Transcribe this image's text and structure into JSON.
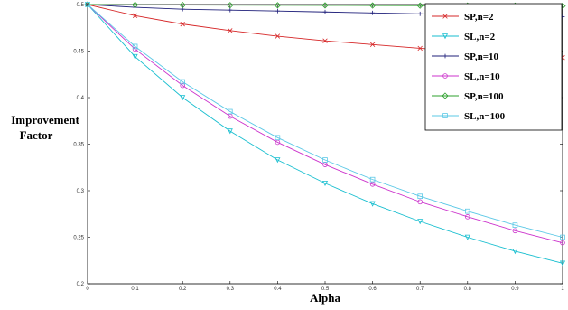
{
  "chart_data": {
    "type": "line",
    "xlabel": "Alpha",
    "ylabel_lines": [
      "Improvement",
      "Factor"
    ],
    "xlim": [
      0,
      1
    ],
    "ylim": [
      0.2,
      0.5
    ],
    "xticks": [
      "0",
      "0.1",
      "0.2",
      "0.3",
      "0.4",
      "0.5",
      "0.6",
      "0.7",
      "0.8",
      "0.9",
      "1"
    ],
    "yticks": [
      "0.2",
      "0.25",
      "0.3",
      "0.35",
      "0.4",
      "0.45",
      "0.5"
    ],
    "grid": false,
    "legend_position": "top-right",
    "x": [
      0,
      0.1,
      0.2,
      0.3,
      0.4,
      0.5,
      0.6,
      0.7,
      0.8,
      0.9,
      1.0
    ],
    "series": [
      {
        "name": "SP,n=2",
        "color": "#d62728",
        "marker": "x",
        "values": [
          0.5,
          0.488,
          0.479,
          0.472,
          0.466,
          0.461,
          0.457,
          0.453,
          0.449,
          0.446,
          0.443
        ]
      },
      {
        "name": "SL,n=2",
        "color": "#17becf",
        "marker": "triangle-down",
        "values": [
          0.5,
          0.444,
          0.4,
          0.364,
          0.333,
          0.308,
          0.286,
          0.267,
          0.25,
          0.235,
          0.222
        ]
      },
      {
        "name": "SP,n=10",
        "color": "#1f1f7a",
        "marker": "plus",
        "values": [
          0.5,
          0.497,
          0.495,
          0.494,
          0.493,
          0.492,
          0.491,
          0.49,
          0.489,
          0.488,
          0.487
        ]
      },
      {
        "name": "SL,n=10",
        "color": "#cc33cc",
        "marker": "circle",
        "values": [
          0.5,
          0.452,
          0.413,
          0.38,
          0.352,
          0.328,
          0.307,
          0.288,
          0.272,
          0.257,
          0.244
        ]
      },
      {
        "name": "SP,n=100",
        "color": "#2ca02c",
        "marker": "diamond",
        "values": [
          0.5,
          0.4997,
          0.4995,
          0.4993,
          0.4992,
          0.4991,
          0.499,
          0.4989,
          0.4988,
          0.4987,
          0.4986
        ]
      },
      {
        "name": "SL,n=100",
        "color": "#5bc8e6",
        "marker": "square",
        "values": [
          0.5,
          0.455,
          0.417,
          0.385,
          0.357,
          0.333,
          0.312,
          0.294,
          0.278,
          0.263,
          0.25
        ]
      }
    ]
  }
}
